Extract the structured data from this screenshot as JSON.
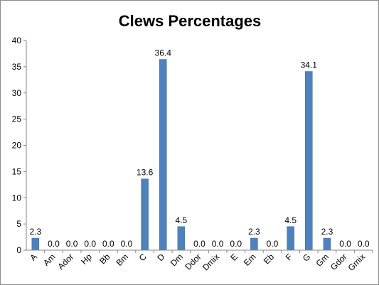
{
  "chart_data": {
    "type": "bar",
    "title": "Clews Percentages",
    "xlabel": "",
    "ylabel": "",
    "ylim": [
      0,
      40
    ],
    "yticks": [
      0,
      5,
      10,
      15,
      20,
      25,
      30,
      35,
      40
    ],
    "grid": false,
    "legend": "none",
    "bar_color": "#4f81bd",
    "categories": [
      "A",
      "Am",
      "Ador",
      "Hp",
      "Bb",
      "Bm",
      "C",
      "D",
      "Dm",
      "Ddor",
      "Dmix",
      "E",
      "Em",
      "Eb",
      "F",
      "G",
      "Gm",
      "Gdor",
      "Gmix"
    ],
    "values": [
      2.3,
      0.0,
      0.0,
      0.0,
      0.0,
      0.0,
      13.6,
      36.4,
      4.5,
      0.0,
      0.0,
      0.0,
      2.3,
      0.0,
      4.5,
      34.1,
      2.3,
      0.0,
      0.0
    ],
    "data_labels": [
      "2.3",
      "0.0",
      "0.0",
      "0.0",
      "0.0",
      "0.0",
      "13.6",
      "36.4",
      "4.5",
      "0.0",
      "0.0",
      "0.0",
      "2.3",
      "0.0",
      "4.5",
      "34.1",
      "2.3",
      "0.0",
      "0.0"
    ]
  }
}
